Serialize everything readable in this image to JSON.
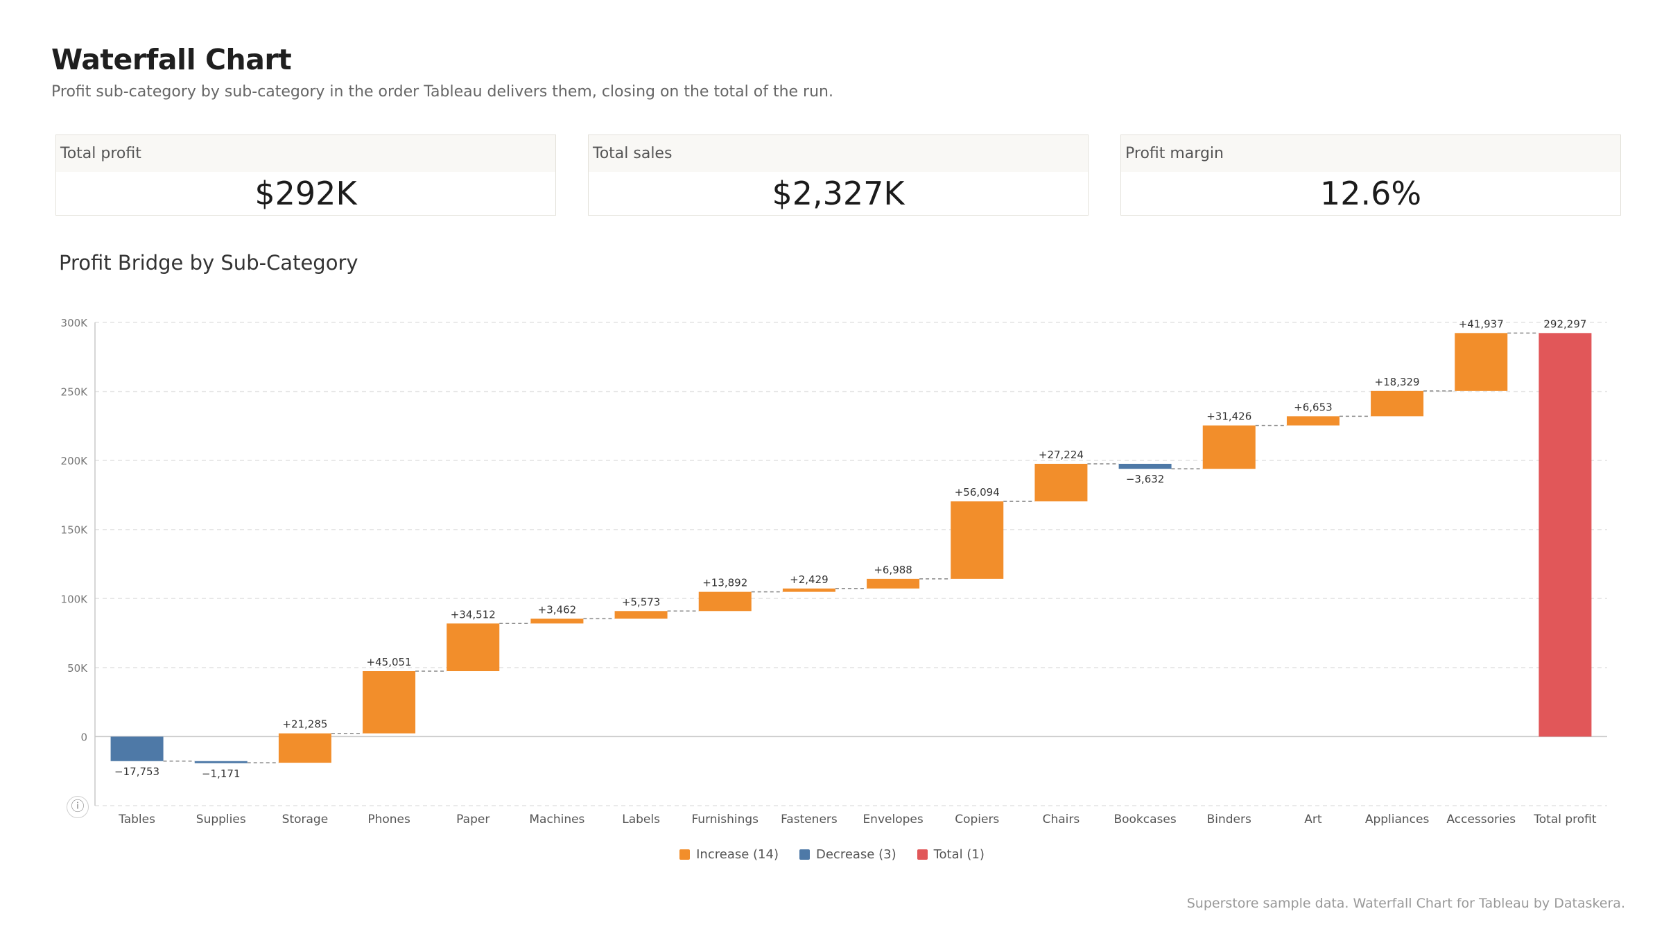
{
  "header": {
    "title": "Waterfall Chart",
    "subtitle": "Profit sub-category by sub-category in the order Tableau delivers them, closing on the total of the run."
  },
  "kpis": [
    {
      "label": "Total profit",
      "value": "$292K"
    },
    {
      "label": "Total sales",
      "value": "$2,327K"
    },
    {
      "label": "Profit margin",
      "value": "12.6%"
    }
  ],
  "chart_title": "Profit Bridge by Sub-Category",
  "chart_data": {
    "type": "bar",
    "subtype": "waterfall",
    "categories": [
      "Tables",
      "Supplies",
      "Storage",
      "Phones",
      "Paper",
      "Machines",
      "Labels",
      "Furnishings",
      "Fasteners",
      "Envelopes",
      "Copiers",
      "Chairs",
      "Bookcases",
      "Binders",
      "Art",
      "Appliances",
      "Accessories",
      "Total profit"
    ],
    "values": [
      -17753,
      -1171,
      21285,
      45051,
      34512,
      3462,
      5573,
      13892,
      2429,
      6988,
      56094,
      27224,
      -3632,
      31426,
      6653,
      18329,
      41937,
      292297
    ],
    "labels": [
      "−17,753",
      "−1,171",
      "+21,285",
      "+45,051",
      "+34,512",
      "+3,462",
      "+5,573",
      "+13,892",
      "+2,429",
      "+6,988",
      "+56,094",
      "+27,224",
      "−3,632",
      "+31,426",
      "+6,653",
      "+18,329",
      "+41,937",
      "292,297"
    ],
    "kinds": [
      "decrease",
      "decrease",
      "increase",
      "increase",
      "increase",
      "increase",
      "increase",
      "increase",
      "increase",
      "increase",
      "increase",
      "increase",
      "decrease",
      "increase",
      "increase",
      "increase",
      "increase",
      "total"
    ],
    "ylim": [
      -50000,
      300000
    ],
    "yticks": [
      0,
      50000,
      100000,
      150000,
      200000,
      250000,
      300000
    ],
    "ytick_labels": [
      "0",
      "50K",
      "100K",
      "150K",
      "200K",
      "250K",
      "300K"
    ],
    "grid": true,
    "legend_position": "bottom-center",
    "colors": {
      "increase": "#F28E2B",
      "decrease": "#4E79A7",
      "total": "#E15759",
      "connector": "#888888",
      "grid": "#e4e4e4",
      "axis": "#c8c8c8"
    }
  },
  "legend": [
    {
      "label": "Increase (14)",
      "color": "#F28E2B"
    },
    {
      "label": "Decrease (3)",
      "color": "#4E79A7"
    },
    {
      "label": "Total (1)",
      "color": "#E15759"
    }
  ],
  "info_icon": "info-icon",
  "footer": "Superstore sample data. Waterfall Chart for Tableau by Dataskera."
}
